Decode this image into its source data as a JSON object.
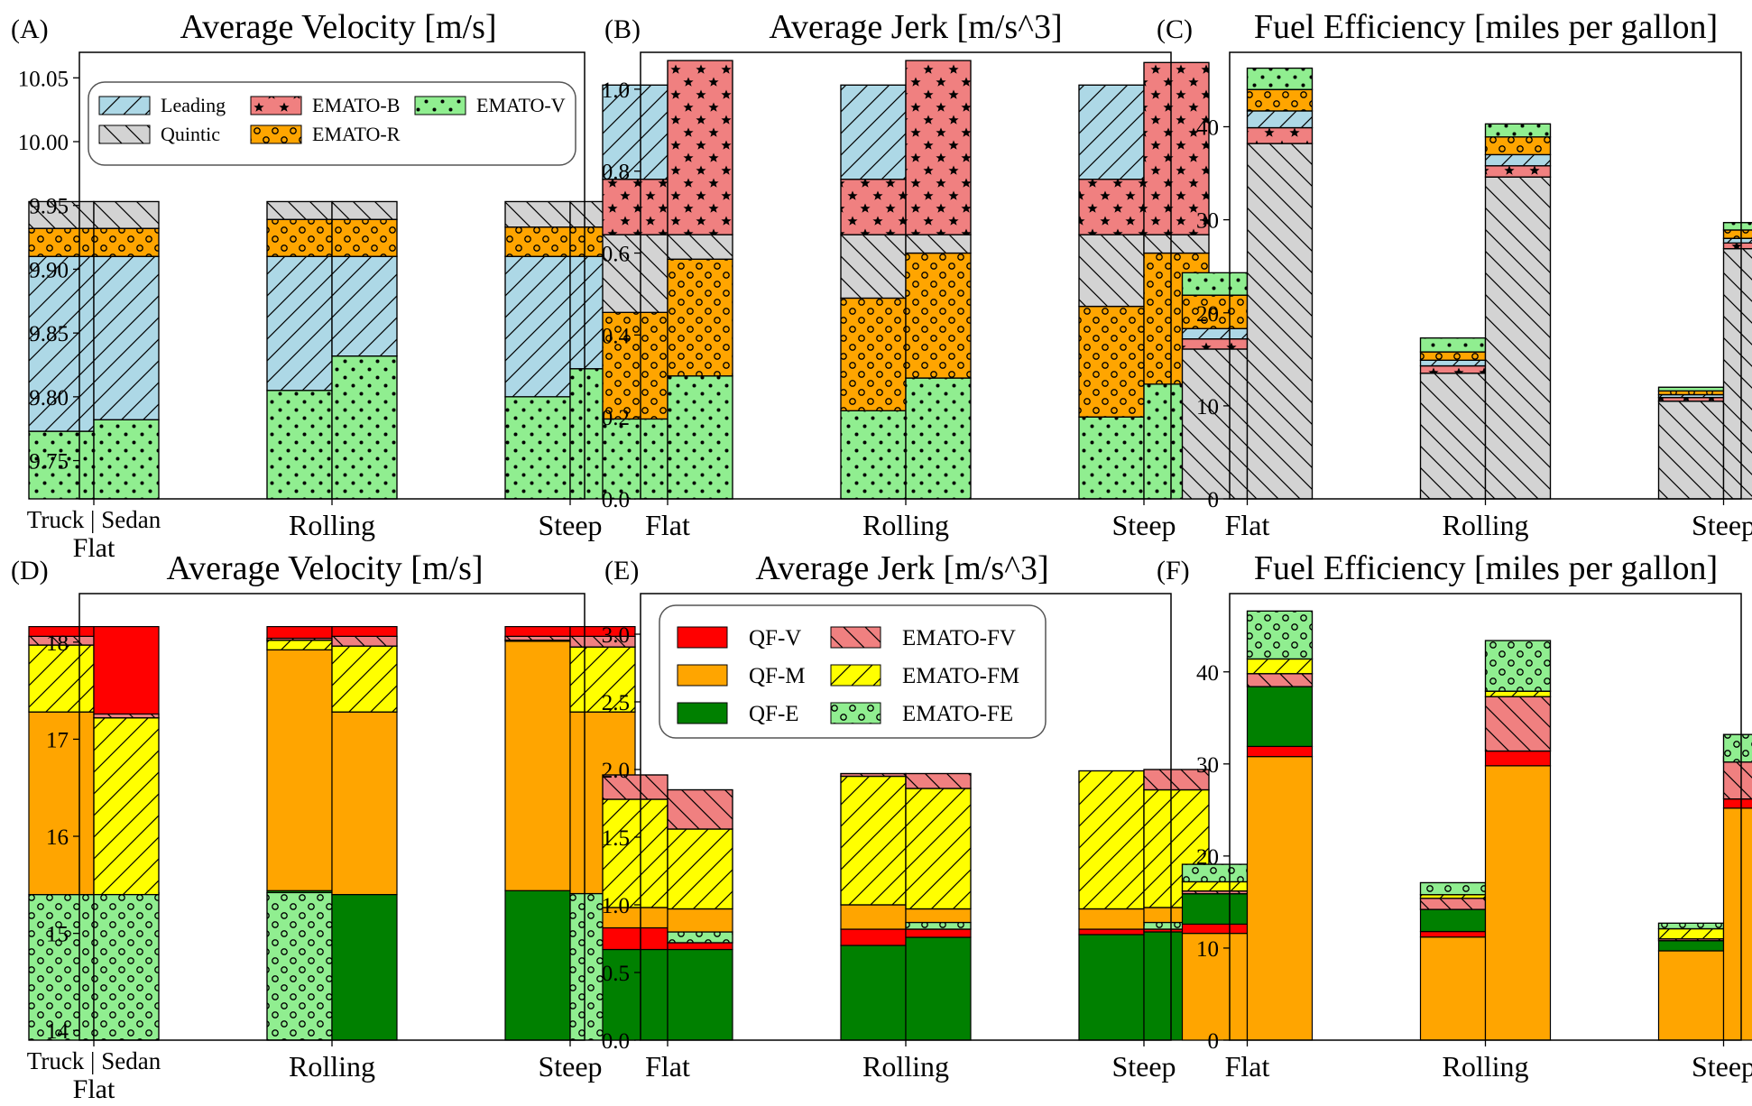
{
  "legend_sets": {
    "top": [
      {
        "key": "lead",
        "label": "Leading",
        "fill": "#add8e6",
        "pattern": "diag"
      },
      {
        "key": "quin",
        "label": "Quintic",
        "fill": "#d3d3d3",
        "pattern": "back"
      },
      {
        "key": "emb",
        "label": "EMATO-B",
        "fill": "#f08080",
        "pattern": "star"
      },
      {
        "key": "emr",
        "label": "EMATO-R",
        "fill": "#ffa500",
        "pattern": "circ"
      },
      {
        "key": "emv",
        "label": "EMATO-V",
        "fill": "#90ee90",
        "pattern": "dots"
      }
    ],
    "bottom": [
      {
        "key": "qfv",
        "label": "QF-V",
        "fill": "#ff0000",
        "pattern": "none"
      },
      {
        "key": "qfm",
        "label": "QF-M",
        "fill": "#ffa500",
        "pattern": "none"
      },
      {
        "key": "qfe",
        "label": "QF-E",
        "fill": "#008000",
        "pattern": "none"
      },
      {
        "key": "efv",
        "label": "EMATO-FV",
        "fill": "#f08080",
        "pattern": "back"
      },
      {
        "key": "efm",
        "label": "EMATO-FM",
        "fill": "#ffff00",
        "pattern": "diag"
      },
      {
        "key": "efe",
        "label": "EMATO-FE",
        "fill": "#90ee90",
        "pattern": "circ"
      }
    ]
  },
  "chart_data": [
    {
      "panel": "(A)",
      "type": "bar",
      "stacked": true,
      "title": "Average Velocity [m/s]",
      "ylim": [
        9.72,
        10.07
      ],
      "yticks": [
        9.75,
        9.8,
        9.85,
        9.9,
        9.95,
        10.0,
        10.05
      ],
      "ytick_decimals": 2,
      "categories": [
        "Flat",
        "Rolling",
        "Steep"
      ],
      "bar_groups": [
        "Truck",
        "Sedan"
      ],
      "xtick_labels": [
        "Truck | Sedan",
        "Rolling",
        "Steep"
      ],
      "xtick_sublabel": "Flat",
      "legend": {
        "set": "top",
        "position": "top"
      },
      "stack_order": [
        "emv",
        "lead",
        "emr",
        "quin"
      ],
      "bars": [
        {
          "emv": 9.773,
          "lead": 9.91,
          "emr": 9.932,
          "quin": 9.953
        },
        {
          "emv": 9.782,
          "lead": 9.91,
          "emr": 9.932,
          "quin": 9.953
        },
        {
          "emv": 9.805,
          "lead": 9.91,
          "emr": 9.939,
          "quin": 9.953
        },
        {
          "emv": 9.832,
          "lead": 9.91,
          "emr": 9.939,
          "quin": 9.953
        },
        {
          "emv": 9.8,
          "lead": 9.91,
          "emr": 9.933,
          "quin": 9.953
        },
        {
          "emv": 9.822,
          "lead": 9.91,
          "emr": 9.933,
          "quin": 9.953
        }
      ]
    },
    {
      "panel": "(B)",
      "type": "bar",
      "stacked": true,
      "title": "Average Jerk [m/s^3]",
      "ylim": [
        0,
        1.09
      ],
      "yticks": [
        0,
        0.2,
        0.4,
        0.6,
        0.8,
        1.0
      ],
      "ytick_decimals": 1,
      "categories": [
        "Flat",
        "Rolling",
        "Steep"
      ],
      "bar_groups": [
        "Truck",
        "Sedan"
      ],
      "xtick_labels": [
        "Flat",
        "Rolling",
        "Steep"
      ],
      "stack_order": [
        "emv",
        "emr",
        "quin",
        "emb",
        "lead"
      ],
      "bars": [
        {
          "emv": 0.195,
          "emr": 0.455,
          "quin": 0.645,
          "emb": 0.78,
          "lead": 1.01
        },
        {
          "emv": 0.3,
          "emr": 0.585,
          "quin": 0.645,
          "lead": 1.01,
          "emb": 1.07
        },
        {
          "emv": 0.215,
          "emr": 0.49,
          "quin": 0.645,
          "emb": 0.78,
          "lead": 1.01
        },
        {
          "emv": 0.295,
          "emr": 0.6,
          "quin": 0.645,
          "lead": 1.01,
          "emb": 1.07
        },
        {
          "emv": 0.2,
          "emr": 0.47,
          "quin": 0.645,
          "emb": 0.78,
          "lead": 1.01
        },
        {
          "emv": 0.28,
          "emr": 0.6,
          "quin": 0.645,
          "lead": 1.01,
          "emb": 1.065
        }
      ]
    },
    {
      "panel": "(C)",
      "type": "bar",
      "stacked": true,
      "title": "Fuel Efficiency [miles per gallon]",
      "ylim": [
        0,
        48
      ],
      "yticks": [
        0,
        10,
        20,
        30,
        40
      ],
      "ytick_decimals": 0,
      "categories": [
        "Flat",
        "Rolling",
        "Steep"
      ],
      "bar_groups": [
        "Truck",
        "Sedan"
      ],
      "xtick_labels": [
        "Flat",
        "Rolling",
        "Steep"
      ],
      "stack_order": [
        "quin",
        "emb",
        "lead",
        "emr",
        "emv"
      ],
      "bars": [
        {
          "quin": 16.1,
          "emb": 17.2,
          "lead": 18.3,
          "emr": 21.9,
          "emv": 24.3
        },
        {
          "quin": 38.2,
          "emb": 39.9,
          "lead": 41.7,
          "emr": 44.0,
          "emv": 46.3
        },
        {
          "quin": 13.5,
          "emb": 14.3,
          "lead": 14.9,
          "emr": 15.8,
          "emv": 17.3
        },
        {
          "quin": 34.6,
          "emb": 35.8,
          "lead": 37.0,
          "emr": 38.9,
          "emv": 40.3
        },
        {
          "quin": 10.5,
          "emb": 10.9,
          "lead": 11.2,
          "emr": 11.6,
          "emv": 12.0
        },
        {
          "quin": 26.9,
          "emb": 27.5,
          "lead": 28.0,
          "emr": 28.9,
          "emv": 29.7
        }
      ]
    },
    {
      "panel": "(D)",
      "type": "bar",
      "stacked": true,
      "title": "Average Velocity [m/s]",
      "ylim": [
        13.9,
        18.5
      ],
      "yticks": [
        14,
        15,
        16,
        17,
        18
      ],
      "ytick_decimals": 0,
      "categories": [
        "Flat",
        "Rolling",
        "Steep"
      ],
      "bar_groups": [
        "Truck",
        "Sedan"
      ],
      "xtick_labels": [
        "Truck | Sedan",
        "Rolling",
        "Steep"
      ],
      "xtick_sublabel": "Flat",
      "stack_order": [
        "efe",
        "qfe",
        "qfm",
        "efm",
        "efv",
        "qfv"
      ],
      "bars": [
        {
          "efe": 15.4,
          "qfm": 17.28,
          "efm": 17.97,
          "efv": 18.06,
          "qfv": 18.16
        },
        {
          "qfe": 15.4,
          "efe": 15.42,
          "efm": 17.22,
          "efv": 17.26,
          "qfv": 18.16
        },
        {
          "efe": 15.42,
          "qfe": 15.44,
          "qfm": 17.92,
          "efm": 18.02,
          "efv": 18.04,
          "qfv": 18.16
        },
        {
          "qfe": 15.4,
          "qfm": 17.28,
          "efm": 17.96,
          "efv": 18.06,
          "qfv": 18.16
        },
        {
          "qfe": 15.44,
          "qfm": 18.01,
          "efm": 18.02,
          "efv": 18.06,
          "qfv": 18.16
        },
        {
          "efe": 15.41,
          "qfm": 17.28,
          "efm": 17.95,
          "efv": 18.06,
          "qfv": 18.16
        }
      ]
    },
    {
      "panel": "(E)",
      "type": "bar",
      "stacked": true,
      "title": "Average Jerk [m/s^3]",
      "ylim": [
        0,
        3.3
      ],
      "yticks": [
        0,
        0.5,
        1.0,
        1.5,
        2.0,
        2.5,
        3.0
      ],
      "ytick_decimals": 1,
      "categories": [
        "Flat",
        "Rolling",
        "Steep"
      ],
      "bar_groups": [
        "Truck",
        "Sedan"
      ],
      "xtick_labels": [
        "Flat",
        "Rolling",
        "Steep"
      ],
      "legend": {
        "set": "bottom",
        "position": "top"
      },
      "stack_order": [
        "qfe",
        "qfv",
        "efe",
        "qfm",
        "efm",
        "efv"
      ],
      "bars": [
        {
          "qfe": 0.67,
          "qfv": 0.83,
          "qfm": 0.98,
          "efm": 1.78,
          "efv": 1.96
        },
        {
          "qfe": 0.67,
          "qfv": 0.72,
          "efe": 0.8,
          "qfm": 0.97,
          "efm": 1.56,
          "efv": 1.85
        },
        {
          "qfe": 0.7,
          "qfv": 0.82,
          "qfm": 1.0,
          "efm": 1.95,
          "efv": 1.97
        },
        {
          "qfe": 0.76,
          "qfv": 0.82,
          "efe": 0.87,
          "qfm": 0.97,
          "efm": 1.86,
          "efv": 1.97
        },
        {
          "qfe": 0.78,
          "qfv": 0.82,
          "qfm": 0.97,
          "efv": 1.95,
          "efm": 1.99
        },
        {
          "qfe": 0.8,
          "qfv": 0.82,
          "efe": 0.87,
          "qfm": 0.98,
          "efm": 1.85,
          "efv": 2.0
        }
      ]
    },
    {
      "panel": "(F)",
      "type": "bar",
      "stacked": true,
      "title": "Fuel Efficiency [miles per gallon]",
      "ylim": [
        0,
        48.5
      ],
      "yticks": [
        0,
        10,
        20,
        30,
        40
      ],
      "ytick_decimals": 0,
      "categories": [
        "Flat",
        "Rolling",
        "Steep"
      ],
      "bar_groups": [
        "Truck",
        "Sedan"
      ],
      "xtick_labels": [
        "Flat",
        "Rolling",
        "Steep"
      ],
      "stack_order": [
        "qfm",
        "qfv",
        "qfe",
        "efv",
        "efm",
        "efe"
      ],
      "bars": [
        {
          "qfm": 11.6,
          "qfv": 12.6,
          "qfe": 15.9,
          "efv": 16.2,
          "efm": 17.2,
          "efe": 19.1
        },
        {
          "qfm": 30.8,
          "qfv": 31.9,
          "qfe": 38.4,
          "efv": 39.8,
          "efm": 41.4,
          "efe": 46.6
        },
        {
          "qfm": 11.2,
          "qfv": 11.8,
          "qfe": 14.2,
          "efv": 15.4,
          "efm": 15.8,
          "efe": 17.1
        },
        {
          "qfm": 29.8,
          "qfv": 31.4,
          "efv": 37.3,
          "efm": 37.9,
          "efe": 43.4
        },
        {
          "qfm": 9.7,
          "qfe": 10.8,
          "efv": 11.0,
          "efm": 12.1,
          "efe": 12.7
        },
        {
          "qfm": 25.2,
          "qfv": 26.2,
          "efm": 30.2,
          "efv": 30.8,
          "efe": 33.2
        }
      ]
    }
  ]
}
